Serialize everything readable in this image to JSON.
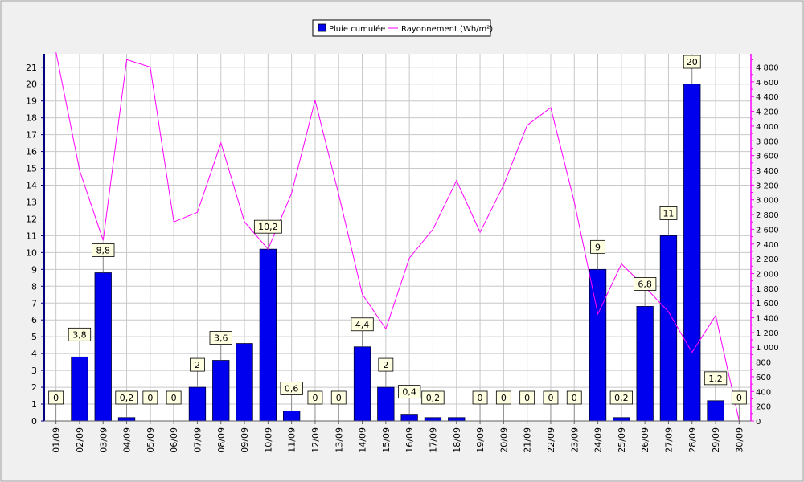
{
  "chart_data": {
    "type": "bar",
    "categories": [
      "01/09",
      "02/09",
      "03/09",
      "04/09",
      "05/09",
      "06/09",
      "07/09",
      "08/09",
      "09/09",
      "10/09",
      "11/09",
      "12/09",
      "13/09",
      "14/09",
      "15/09",
      "16/09",
      "17/09",
      "18/09",
      "19/09",
      "20/09",
      "21/09",
      "22/09",
      "23/09",
      "24/09",
      "25/09",
      "26/09",
      "27/09",
      "28/09",
      "29/09",
      "30/09"
    ],
    "series": [
      {
        "name": "Pluie cumulée",
        "type": "bar",
        "axis": "left",
        "color": "#0000ee",
        "values": [
          0,
          3.8,
          8.8,
          0.2,
          0,
          0,
          2,
          3.6,
          4.6,
          10.2,
          0.6,
          0,
          0,
          4.4,
          2,
          0.4,
          0.2,
          0.2,
          0,
          0,
          0,
          0,
          0,
          9,
          0.2,
          6.8,
          11,
          20,
          1.2,
          0
        ],
        "labels": [
          "0",
          "3,8",
          "8,8",
          "0,2",
          "0",
          "0",
          "2",
          "3,6",
          "",
          "10,2",
          "0,6",
          "0",
          "0",
          "4,4",
          "2",
          "0,4",
          "0,2",
          "",
          "0",
          "0",
          "0",
          "0",
          "0",
          "9",
          "0,2",
          "6,8",
          "11",
          "20",
          "1,2",
          "0"
        ]
      },
      {
        "name": "Rayonnement (Wh/m²)",
        "type": "line",
        "axis": "right",
        "color": "#ff00ff",
        "values": [
          5000,
          3400,
          2450,
          4900,
          4800,
          2700,
          2830,
          3770,
          2700,
          2330,
          3090,
          4350,
          3070,
          1720,
          1250,
          2210,
          2600,
          3260,
          2560,
          3200,
          4010,
          4250,
          2970,
          1450,
          2130,
          1820,
          1480,
          930,
          1430,
          0
        ]
      }
    ],
    "y_left": {
      "min": 0,
      "max": 21.8,
      "ticks": [
        "0",
        "1",
        "2",
        "3",
        "4",
        "5",
        "6",
        "7",
        "8",
        "9",
        "10",
        "11",
        "12",
        "13",
        "14",
        "15",
        "16",
        "17",
        "18",
        "19",
        "20",
        "21"
      ]
    },
    "y_right": {
      "min": 0,
      "max": 4980,
      "ticks": [
        "0",
        "200",
        "400",
        "600",
        "800",
        "1 000",
        "1 200",
        "1 400",
        "1 600",
        "1 800",
        "2 000",
        "2 200",
        "2 400",
        "2 600",
        "2 800",
        "3 000",
        "3 200",
        "3 400",
        "3 600",
        "3 800",
        "4 000",
        "4 200",
        "4 400",
        "4 600",
        "4 800"
      ]
    },
    "grid": true,
    "legend_position": "top-center",
    "title": "",
    "xlabel": "",
    "ylabel": ""
  }
}
